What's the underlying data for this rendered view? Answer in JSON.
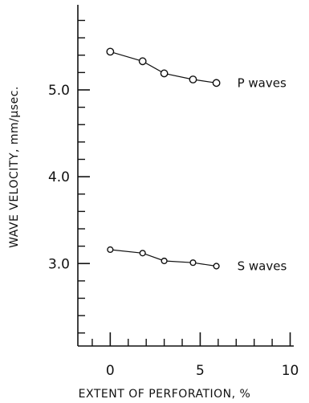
{
  "chart_data": {
    "type": "line",
    "title": "",
    "xlabel": "EXTENT OF PERFORATION, %",
    "ylabel": "WAVE VELOCITY, mm/μsec.",
    "xlim": [
      -1.8,
      10.2
    ],
    "ylim": [
      2.05,
      5.98
    ],
    "x_ticks": [
      0,
      5,
      10
    ],
    "x_tick_labels": [
      "0",
      "5",
      "10"
    ],
    "x_minor_ticks": [
      -1,
      1,
      2,
      3,
      4,
      6,
      7,
      8,
      9
    ],
    "y_ticks": [
      3.0,
      4.0,
      5.0
    ],
    "y_tick_labels": [
      "3.0",
      "4.0",
      "5.0"
    ],
    "y_minor_ticks": [
      2.2,
      2.4,
      2.6,
      2.8,
      3.2,
      3.4,
      3.6,
      3.8,
      4.2,
      4.4,
      4.6,
      4.8,
      5.2,
      5.4,
      5.6,
      5.8
    ],
    "grid": false,
    "legend": "none",
    "series": [
      {
        "name": "P waves",
        "x": [
          0,
          1.8,
          3.0,
          4.6,
          5.9
        ],
        "y": [
          5.44,
          5.33,
          5.19,
          5.12,
          5.08
        ]
      },
      {
        "name": "S waves",
        "x": [
          0,
          1.8,
          3.0,
          4.6,
          5.9
        ],
        "y": [
          3.16,
          3.12,
          3.03,
          3.01,
          2.97
        ]
      }
    ]
  },
  "colors": {
    "ink": "#111111",
    "marker_fill": "#ffffff",
    "background": "#ffffff"
  }
}
